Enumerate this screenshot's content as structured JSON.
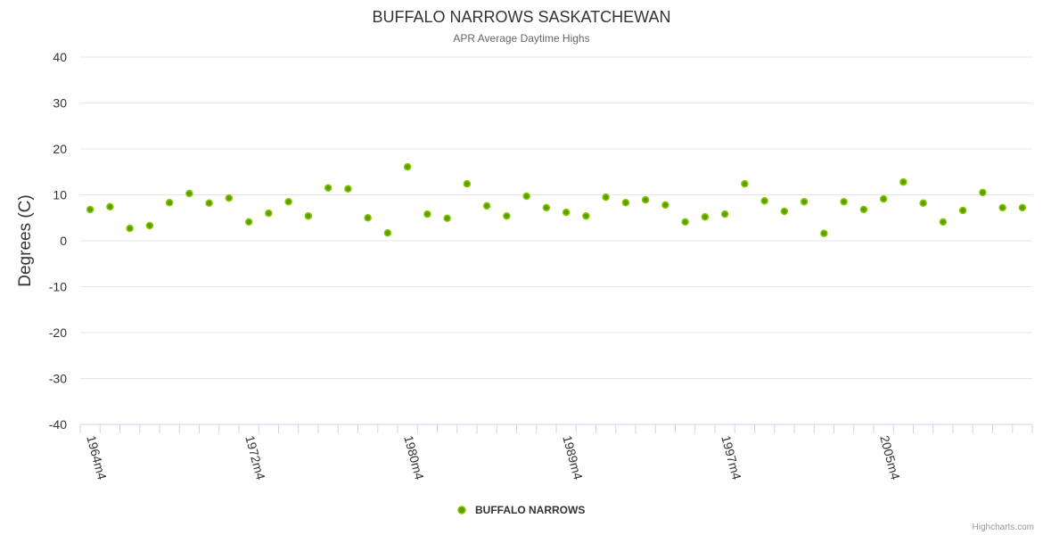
{
  "chart_data": {
    "type": "scatter",
    "title": "BUFFALO NARROWS SASKATCHEWAN",
    "subtitle": "APR Average Daytime Highs",
    "ylabel": "Degrees (C)",
    "xlabel": "",
    "ylim": [
      -40,
      40
    ],
    "yticks": [
      40,
      30,
      20,
      10,
      0,
      -10,
      -20,
      -30,
      -40
    ],
    "grid": true,
    "legend_position": "bottom-center",
    "x_tick_labels": [
      "1964m4",
      "1972m4",
      "1980m4",
      "1989m4",
      "1997m4",
      "2005m4"
    ],
    "series": [
      {
        "name": "BUFFALO NARROWS",
        "color": "#5a9e00",
        "categories": [
          "1964m4",
          "1965m4",
          "1966m4",
          "1967m4",
          "1968m4",
          "1969m4",
          "1970m4",
          "1971m4",
          "1972m4",
          "1973m4",
          "1974m4",
          "1975m4",
          "1976m4",
          "1977m4",
          "1978m4",
          "1979m4",
          "1980m4",
          "1981m4",
          "1982m4",
          "1983m4",
          "1984m4",
          "1985m4",
          "1987m4",
          "1988m4",
          "1989m4",
          "1990m4",
          "1991m4",
          "1992m4",
          "1993m4",
          "1994m4",
          "1995m4",
          "1996m4",
          "1997m4",
          "1998m4",
          "1999m4",
          "2000m4",
          "2001m4",
          "2002m4",
          "2003m4",
          "2004m4",
          "2005m4",
          "2006m4",
          "2007m4",
          "2008m4",
          "2009m4",
          "2010m4",
          "2011m4",
          "2012m4"
        ],
        "values": [
          6.8,
          7.4,
          2.7,
          3.3,
          8.3,
          10.3,
          8.2,
          9.3,
          4.1,
          6.0,
          8.5,
          5.4,
          11.5,
          11.3,
          5.0,
          1.7,
          16.1,
          5.8,
          4.9,
          12.4,
          7.6,
          5.4,
          9.7,
          7.2,
          6.2,
          5.4,
          9.5,
          8.3,
          8.9,
          7.8,
          4.1,
          5.2,
          5.8,
          12.4,
          8.7,
          6.4,
          8.5,
          1.6,
          8.5,
          6.8,
          9.1,
          12.8,
          8.2,
          4.1,
          6.6,
          10.5,
          7.2,
          7.2
        ]
      }
    ]
  },
  "credits": "Highcharts.com"
}
